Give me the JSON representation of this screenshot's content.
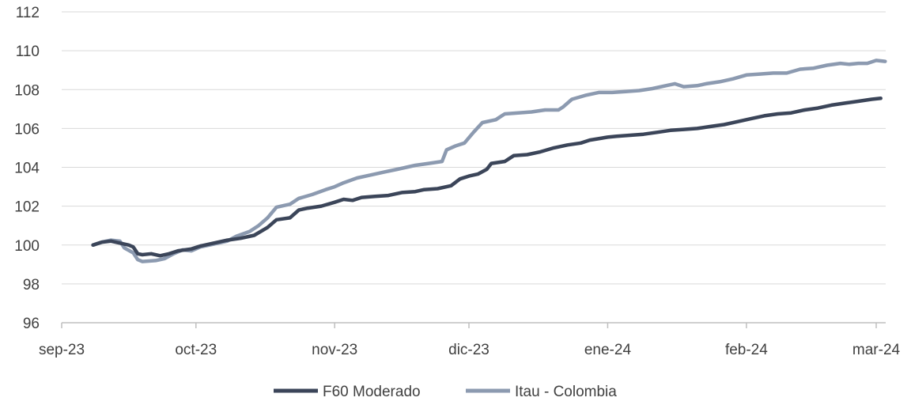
{
  "chart_data": {
    "type": "line",
    "title": "",
    "xlabel": "",
    "ylabel": "",
    "ylim": [
      96,
      112
    ],
    "yticks": [
      96,
      98,
      100,
      102,
      104,
      106,
      108,
      110,
      112
    ],
    "xlim": [
      "2023-09-01",
      "2024-03-01"
    ],
    "xticks": [
      {
        "date": "2023-09-01",
        "label": "sep-23"
      },
      {
        "date": "2023-10-01",
        "label": "oct-23"
      },
      {
        "date": "2023-11-01",
        "label": "nov-23"
      },
      {
        "date": "2023-12-01",
        "label": "dic-23"
      },
      {
        "date": "2024-01-01",
        "label": "ene-24"
      },
      {
        "date": "2024-02-01",
        "label": "feb-24"
      },
      {
        "date": "2024-03-01",
        "label": "mar-24"
      }
    ],
    "grid": true,
    "legend_position": "bottom",
    "series": [
      {
        "name": "F60 Moderado",
        "color": "#3b4559",
        "points": [
          [
            "2023-09-08",
            100.0
          ],
          [
            "2023-09-10",
            100.15
          ],
          [
            "2023-09-12",
            100.2
          ],
          [
            "2023-09-14",
            100.1
          ],
          [
            "2023-09-16",
            100.0
          ],
          [
            "2023-09-17",
            99.9
          ],
          [
            "2023-09-18",
            99.55
          ],
          [
            "2023-09-19",
            99.5
          ],
          [
            "2023-09-21",
            99.55
          ],
          [
            "2023-09-23",
            99.45
          ],
          [
            "2023-09-25",
            99.55
          ],
          [
            "2023-09-27",
            99.7
          ],
          [
            "2023-09-30",
            99.8
          ],
          [
            "2023-10-02",
            99.95
          ],
          [
            "2023-10-05",
            100.1
          ],
          [
            "2023-10-08",
            100.25
          ],
          [
            "2023-10-11",
            100.35
          ],
          [
            "2023-10-14",
            100.5
          ],
          [
            "2023-10-17",
            100.9
          ],
          [
            "2023-10-19",
            101.3
          ],
          [
            "2023-10-22",
            101.4
          ],
          [
            "2023-10-24",
            101.8
          ],
          [
            "2023-10-26",
            101.9
          ],
          [
            "2023-10-29",
            102.0
          ],
          [
            "2023-11-01",
            102.2
          ],
          [
            "2023-11-03",
            102.35
          ],
          [
            "2023-11-05",
            102.3
          ],
          [
            "2023-11-07",
            102.45
          ],
          [
            "2023-11-10",
            102.5
          ],
          [
            "2023-11-13",
            102.55
          ],
          [
            "2023-11-16",
            102.7
          ],
          [
            "2023-11-19",
            102.75
          ],
          [
            "2023-11-21",
            102.85
          ],
          [
            "2023-11-24",
            102.9
          ],
          [
            "2023-11-27",
            103.05
          ],
          [
            "2023-11-29",
            103.4
          ],
          [
            "2023-12-01",
            103.55
          ],
          [
            "2023-12-03",
            103.65
          ],
          [
            "2023-12-05",
            103.9
          ],
          [
            "2023-12-06",
            104.2
          ],
          [
            "2023-12-09",
            104.3
          ],
          [
            "2023-12-11",
            104.6
          ],
          [
            "2023-12-14",
            104.65
          ],
          [
            "2023-12-17",
            104.8
          ],
          [
            "2023-12-20",
            105.0
          ],
          [
            "2023-12-23",
            105.15
          ],
          [
            "2023-12-26",
            105.25
          ],
          [
            "2023-12-28",
            105.4
          ],
          [
            "2024-01-01",
            105.55
          ],
          [
            "2024-01-03",
            105.6
          ],
          [
            "2024-01-06",
            105.65
          ],
          [
            "2024-01-09",
            105.7
          ],
          [
            "2024-01-12",
            105.8
          ],
          [
            "2024-01-15",
            105.9
          ],
          [
            "2024-01-18",
            105.95
          ],
          [
            "2024-01-21",
            106.0
          ],
          [
            "2024-01-24",
            106.1
          ],
          [
            "2024-01-27",
            106.2
          ],
          [
            "2024-01-30",
            106.35
          ],
          [
            "2024-02-02",
            106.5
          ],
          [
            "2024-02-05",
            106.65
          ],
          [
            "2024-02-08",
            106.75
          ],
          [
            "2024-02-11",
            106.8
          ],
          [
            "2024-02-14",
            106.95
          ],
          [
            "2024-02-17",
            107.05
          ],
          [
            "2024-02-20",
            107.2
          ],
          [
            "2024-02-23",
            107.3
          ],
          [
            "2024-02-26",
            107.4
          ],
          [
            "2024-02-29",
            107.5
          ],
          [
            "2024-03-02",
            107.55
          ]
        ]
      },
      {
        "name": "Itau - Colombia",
        "color": "#8c9ab0",
        "points": [
          [
            "2023-09-08",
            100.0
          ],
          [
            "2023-09-10",
            100.15
          ],
          [
            "2023-09-12",
            100.25
          ],
          [
            "2023-09-14",
            100.2
          ],
          [
            "2023-09-15",
            99.85
          ],
          [
            "2023-09-17",
            99.6
          ],
          [
            "2023-09-18",
            99.25
          ],
          [
            "2023-09-19",
            99.15
          ],
          [
            "2023-09-22",
            99.2
          ],
          [
            "2023-09-24",
            99.3
          ],
          [
            "2023-09-26",
            99.55
          ],
          [
            "2023-09-28",
            99.75
          ],
          [
            "2023-09-30",
            99.7
          ],
          [
            "2023-10-02",
            99.9
          ],
          [
            "2023-10-05",
            100.05
          ],
          [
            "2023-10-08",
            100.2
          ],
          [
            "2023-10-10",
            100.45
          ],
          [
            "2023-10-13",
            100.7
          ],
          [
            "2023-10-15",
            101.0
          ],
          [
            "2023-10-17",
            101.4
          ],
          [
            "2023-10-19",
            101.95
          ],
          [
            "2023-10-22",
            102.1
          ],
          [
            "2023-10-24",
            102.4
          ],
          [
            "2023-10-27",
            102.6
          ],
          [
            "2023-10-30",
            102.85
          ],
          [
            "2023-11-01",
            103.0
          ],
          [
            "2023-11-03",
            103.2
          ],
          [
            "2023-11-06",
            103.45
          ],
          [
            "2023-11-09",
            103.6
          ],
          [
            "2023-11-12",
            103.75
          ],
          [
            "2023-11-15",
            103.9
          ],
          [
            "2023-11-17",
            104.0
          ],
          [
            "2023-11-19",
            104.1
          ],
          [
            "2023-11-22",
            104.2
          ],
          [
            "2023-11-25",
            104.3
          ],
          [
            "2023-11-26",
            104.9
          ],
          [
            "2023-11-28",
            105.1
          ],
          [
            "2023-11-30",
            105.25
          ],
          [
            "2023-12-02",
            105.8
          ],
          [
            "2023-12-04",
            106.3
          ],
          [
            "2023-12-07",
            106.45
          ],
          [
            "2023-12-09",
            106.75
          ],
          [
            "2023-12-12",
            106.8
          ],
          [
            "2023-12-15",
            106.85
          ],
          [
            "2023-12-18",
            106.95
          ],
          [
            "2023-12-21",
            106.95
          ],
          [
            "2023-12-22",
            107.1
          ],
          [
            "2023-12-24",
            107.5
          ],
          [
            "2023-12-27",
            107.7
          ],
          [
            "2023-12-30",
            107.85
          ],
          [
            "2024-01-02",
            107.85
          ],
          [
            "2024-01-05",
            107.9
          ],
          [
            "2024-01-08",
            107.95
          ],
          [
            "2024-01-11",
            108.05
          ],
          [
            "2024-01-14",
            108.2
          ],
          [
            "2024-01-16",
            108.3
          ],
          [
            "2024-01-18",
            108.15
          ],
          [
            "2024-01-21",
            108.2
          ],
          [
            "2024-01-23",
            108.3
          ],
          [
            "2024-01-26",
            108.4
          ],
          [
            "2024-01-29",
            108.55
          ],
          [
            "2024-02-01",
            108.75
          ],
          [
            "2024-02-04",
            108.8
          ],
          [
            "2024-02-07",
            108.85
          ],
          [
            "2024-02-10",
            108.85
          ],
          [
            "2024-02-13",
            109.05
          ],
          [
            "2024-02-16",
            109.1
          ],
          [
            "2024-02-19",
            109.25
          ],
          [
            "2024-02-22",
            109.35
          ],
          [
            "2024-02-24",
            109.3
          ],
          [
            "2024-02-26",
            109.35
          ],
          [
            "2024-02-28",
            109.35
          ],
          [
            "2024-03-01",
            109.5
          ],
          [
            "2024-03-03",
            109.45
          ]
        ]
      }
    ]
  }
}
